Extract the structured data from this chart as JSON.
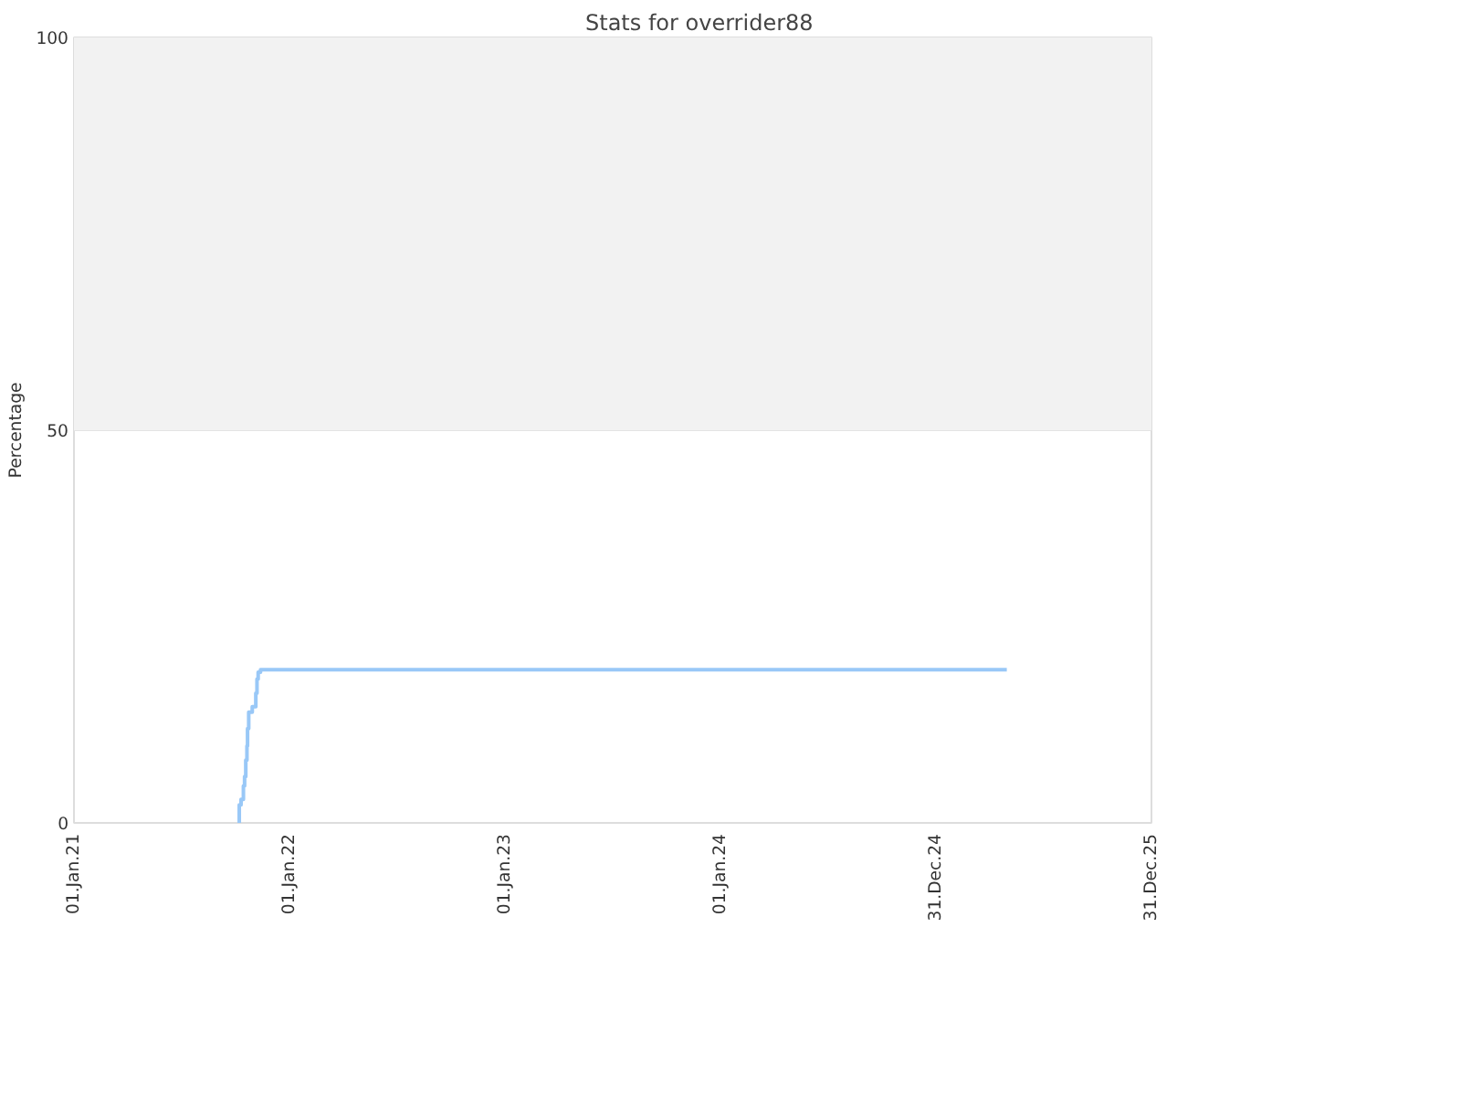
{
  "chart_data": {
    "type": "step",
    "title": "Stats for overrider88",
    "ylabel": "Percentage",
    "x": [
      "2021-10-07",
      "2021-10-08",
      "2021-10-11",
      "2021-10-15",
      "2021-10-17",
      "2021-10-19",
      "2021-10-21",
      "2021-10-22",
      "2021-10-24",
      "2021-10-30",
      "2021-11-05",
      "2021-11-07",
      "2021-11-09",
      "2021-11-13",
      "2025-04-30"
    ],
    "series": [
      {
        "color": "#99c8f7",
        "values": [
          0,
          2.3,
          3.0,
          4.7,
          5.9,
          8.0,
          9.8,
          12.0,
          14.1,
          14.8,
          16.5,
          18.3,
          19.2,
          19.5,
          19.5
        ]
      }
    ],
    "xlim": [
      "2021-01-01",
      "2025-12-31"
    ],
    "xticks": [
      {
        "value": "2021-01-01",
        "label": "01.Jan.21"
      },
      {
        "value": "2022-01-01",
        "label": "01.Jan.22"
      },
      {
        "value": "2023-01-01",
        "label": "01.Jan.23"
      },
      {
        "value": "2024-01-01",
        "label": "01.Jan.24"
      },
      {
        "value": "2024-12-31",
        "label": "31.Dec.24"
      },
      {
        "value": "2025-12-31",
        "label": "31.Dec.25"
      }
    ],
    "ylim": [
      0,
      100
    ],
    "yticks": [
      0,
      50,
      100
    ],
    "bands": [
      {
        "axis": "y",
        "from": 50,
        "to": 100,
        "color": "#f2f2f2"
      }
    ],
    "grid": "y"
  }
}
